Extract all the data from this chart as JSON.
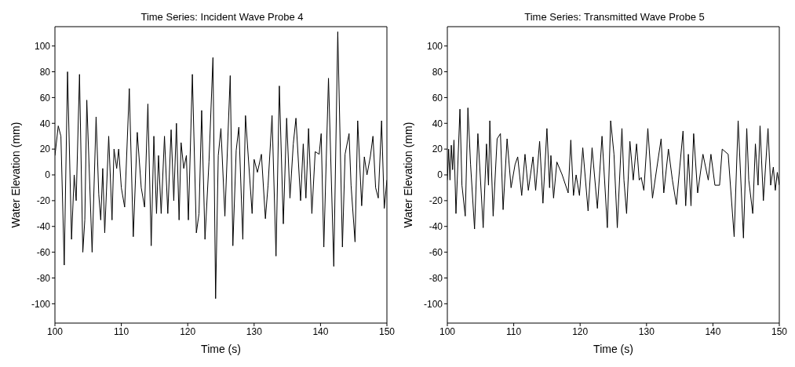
{
  "chart_data": [
    {
      "type": "line",
      "title": "Time Series: Incident Wave Probe 4",
      "xlabel": "Time (s)",
      "ylabel": "Water Elevation (mm)",
      "xlim": [
        100,
        150
      ],
      "xticks": [
        100,
        110,
        120,
        130,
        140,
        150
      ],
      "ylim": [
        -115,
        115
      ],
      "yticks": [
        -100,
        -80,
        -60,
        -40,
        -20,
        0,
        20,
        40,
        60,
        80,
        100
      ],
      "marker": "none",
      "line_style": "solid",
      "series": [
        {
          "color": "#000000",
          "x": [
            100.0,
            100.5,
            100.9,
            101.4,
            101.9,
            102.5,
            102.9,
            103.2,
            103.7,
            104.2,
            104.5,
            104.8,
            105.6,
            106.2,
            106.6,
            106.9,
            107.2,
            107.5,
            108.1,
            108.6,
            108.9,
            109.3,
            109.6,
            110.0,
            110.5,
            111.2,
            111.8,
            112.4,
            113.0,
            113.5,
            114.0,
            114.5,
            114.9,
            115.3,
            115.6,
            116.0,
            116.5,
            117.0,
            117.5,
            117.9,
            118.3,
            118.7,
            119.0,
            119.4,
            119.8,
            120.1,
            120.7,
            121.3,
            121.7,
            122.1,
            122.6,
            123.2,
            123.8,
            124.2,
            124.6,
            125.0,
            125.6,
            126.4,
            126.8,
            127.3,
            127.7,
            128.3,
            128.7,
            129.7,
            130.0,
            130.5,
            131.1,
            131.7,
            132.1,
            132.7,
            133.3,
            133.8,
            134.4,
            134.9,
            135.4,
            135.9,
            136.3,
            137.0,
            137.4,
            137.8,
            138.2,
            138.7,
            139.2,
            139.8,
            140.1,
            140.5,
            141.2,
            142.0,
            142.6,
            143.3,
            143.7,
            144.3,
            144.6,
            145.2,
            145.6,
            146.2,
            146.6,
            147.0,
            147.5,
            147.9,
            148.3,
            148.7,
            149.2,
            149.6,
            150.0
          ],
          "values": [
            15,
            38,
            30,
            -70,
            80,
            -50,
            0,
            -20,
            78,
            -60,
            -35,
            58,
            -60,
            45,
            -15,
            -35,
            5,
            -45,
            30,
            -35,
            20,
            5,
            20,
            -10,
            -25,
            67,
            -48,
            33,
            -10,
            -25,
            55,
            -55,
            30,
            -30,
            15,
            -30,
            30,
            -30,
            35,
            -20,
            40,
            -35,
            25,
            5,
            15,
            -35,
            78,
            -45,
            -30,
            50,
            -50,
            10,
            91,
            -96,
            15,
            36,
            -32,
            77,
            -55,
            19,
            37,
            -50,
            46,
            -30,
            12,
            2,
            16,
            -34,
            -8,
            46,
            -63,
            69,
            -38,
            44,
            -18,
            24,
            44,
            -20,
            24,
            -18,
            36,
            -30,
            18,
            16,
            32,
            -56,
            75,
            -71,
            111,
            -56,
            16,
            32,
            -8,
            -52,
            42,
            -24,
            14,
            0,
            14,
            30,
            -10,
            -18,
            42,
            -26,
            -4
          ]
        }
      ]
    },
    {
      "type": "line",
      "title": "Time Series: Transmitted Wave Probe 5",
      "xlabel": "Time (s)",
      "ylabel": "Water Elevation (mm)",
      "xlim": [
        100,
        150
      ],
      "xticks": [
        100,
        110,
        120,
        130,
        140,
        150
      ],
      "ylim": [
        -115,
        115
      ],
      "yticks": [
        -100,
        -80,
        -60,
        -40,
        -20,
        0,
        20,
        40,
        60,
        80,
        100
      ],
      "marker": "none",
      "line_style": "solid",
      "series": [
        {
          "color": "#000000",
          "x": [
            100.0,
            100.2,
            100.4,
            100.6,
            100.8,
            101.0,
            101.3,
            101.9,
            102.2,
            102.7,
            103.1,
            103.5,
            104.1,
            104.6,
            105.4,
            105.9,
            106.2,
            106.4,
            106.9,
            107.5,
            108.0,
            108.4,
            109.0,
            109.6,
            110.2,
            110.6,
            111.2,
            111.7,
            112.2,
            112.9,
            113.3,
            113.9,
            114.4,
            115.0,
            115.4,
            115.6,
            116.0,
            116.5,
            117.3,
            118.2,
            118.6,
            119.0,
            119.4,
            119.9,
            120.4,
            121.2,
            121.8,
            122.6,
            123.3,
            124.1,
            124.6,
            125.1,
            125.6,
            126.3,
            126.6,
            127.0,
            127.5,
            128.0,
            128.5,
            128.9,
            129.2,
            129.6,
            130.2,
            130.9,
            131.4,
            132.2,
            132.6,
            133.3,
            133.9,
            134.5,
            135.5,
            135.9,
            136.3,
            136.7,
            137.1,
            137.7,
            138.5,
            139.3,
            139.7,
            140.3,
            141.0,
            141.4,
            142.3,
            143.2,
            143.8,
            144.6,
            145.1,
            145.4,
            146.0,
            146.4,
            146.8,
            147.1,
            147.6,
            148.3,
            148.7,
            149.1,
            149.4,
            149.7,
            150.0
          ],
          "values": [
            -4,
            20,
            -4,
            23,
            4,
            27,
            -30,
            51,
            -8,
            -32,
            52,
            8,
            -42,
            32,
            -41,
            24,
            -8,
            42,
            -32,
            28,
            32,
            -27,
            28,
            -10,
            8,
            14,
            -16,
            16,
            -12,
            14,
            -12,
            26,
            -22,
            36,
            -10,
            15,
            -18,
            10,
            0,
            -14,
            27,
            -16,
            0,
            -16,
            21,
            -28,
            21,
            -26,
            30,
            -41,
            42,
            16,
            -41,
            36,
            -4,
            -30,
            26,
            -4,
            24,
            -4,
            -2,
            -12,
            36,
            -18,
            0,
            28,
            -14,
            20,
            -4,
            -23,
            34,
            -24,
            16,
            -24,
            32,
            -14,
            16,
            -4,
            16,
            -8,
            -8,
            20,
            16,
            -48,
            42,
            -49,
            36,
            -4,
            -30,
            24,
            -8,
            38,
            -20,
            36,
            -8,
            6,
            -12,
            2,
            -8
          ]
        }
      ]
    }
  ]
}
